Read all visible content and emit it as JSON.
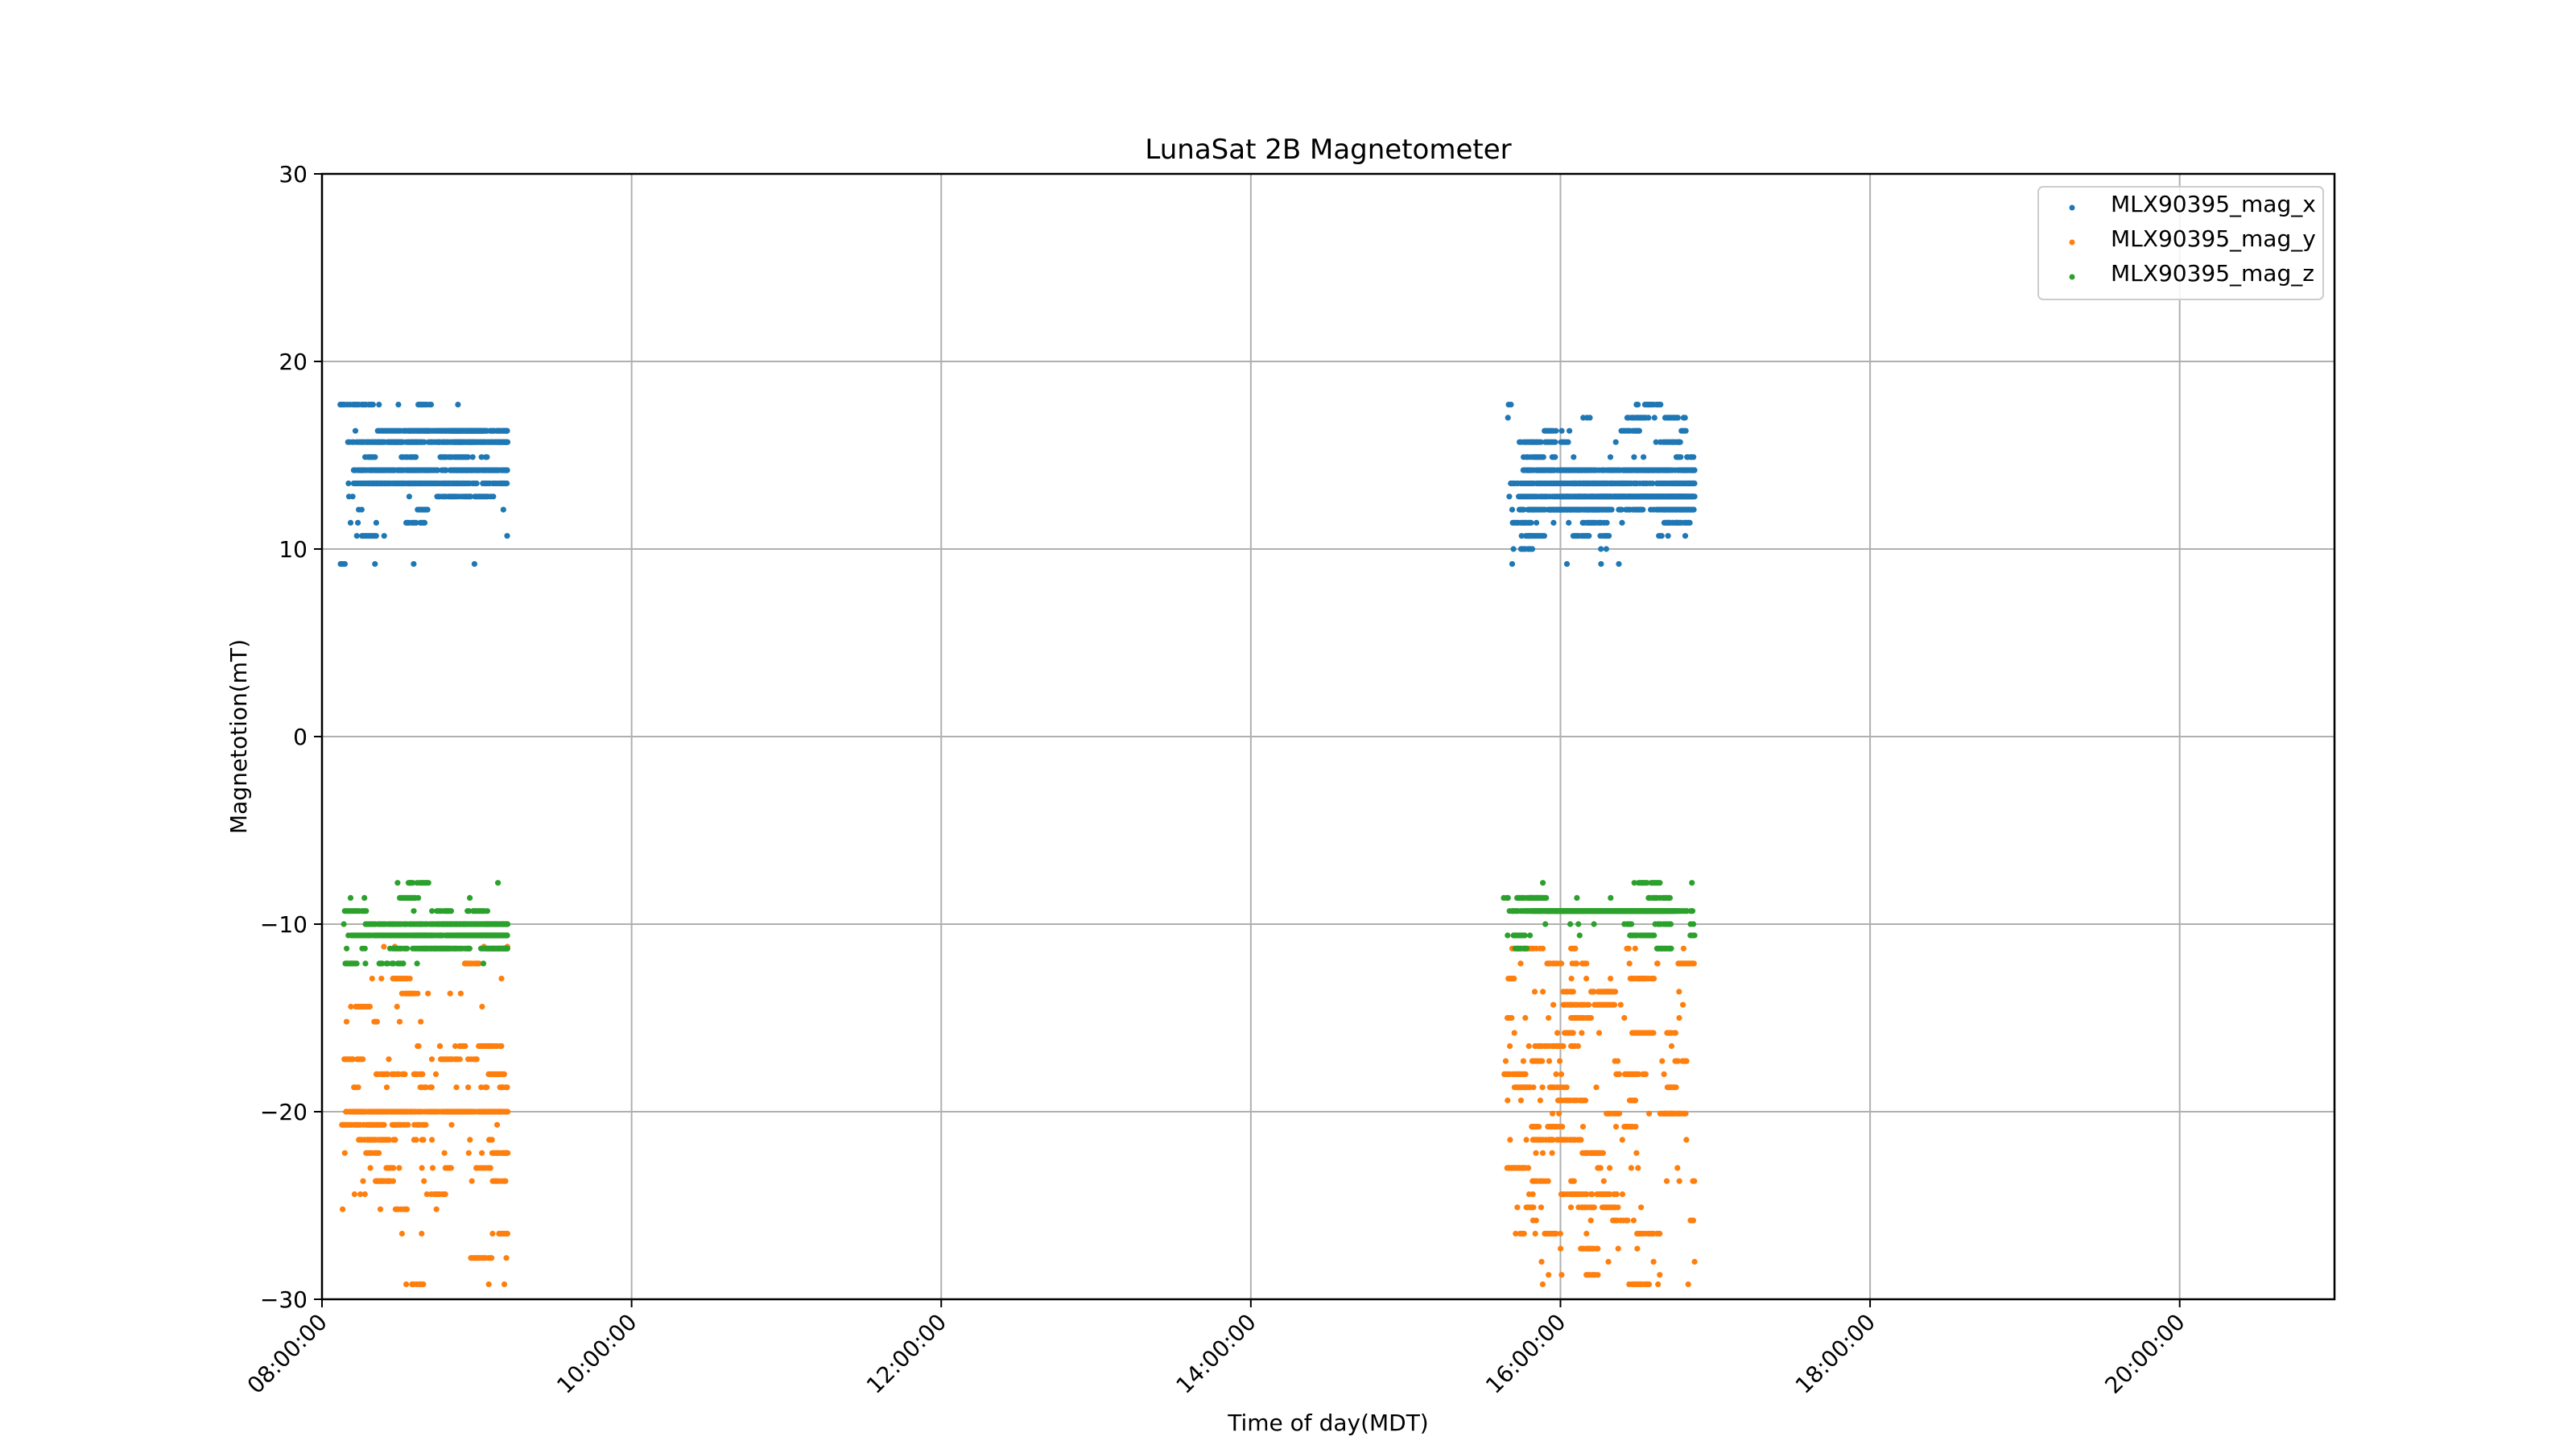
{
  "chart_data": {
    "type": "scatter",
    "title": "LunaSat 2B Magnetometer",
    "xlabel": "Time of day(MDT)",
    "ylabel": "Magnetotion(mT)",
    "xlim": [
      "08:00:00",
      "21:00:00"
    ],
    "ylim": [
      -30,
      30
    ],
    "x_ticks": [
      "08:00:00",
      "10:00:00",
      "12:00:00",
      "14:00:00",
      "16:00:00",
      "18:00:00",
      "20:00:00"
    ],
    "y_ticks": [
      30,
      20,
      10,
      0,
      -10,
      -20,
      -30
    ],
    "y_tick_labels": [
      "30",
      "20",
      "10",
      "0",
      "−10",
      "−20",
      "−30"
    ],
    "grid": true,
    "legend_position": "top-right",
    "series": [
      {
        "name": "MLX90395_mag_x",
        "color": "#1f77b4",
        "segments": [
          {
            "x_start": "08:07:00",
            "x_end": "09:12:00",
            "y_levels": [
              17.7,
              16.3,
              15.7,
              14.9,
              14.2,
              13.5,
              12.8,
              12.1,
              11.4,
              10.7,
              9.2
            ],
            "y_weights": [
              2,
              4,
              5,
              3,
              4,
              5,
              2,
              1,
              1,
              1,
              1
            ]
          },
          {
            "x_start": "15:38:00",
            "x_end": "16:52:00",
            "y_levels": [
              17.7,
              17.0,
              16.3,
              15.7,
              14.9,
              14.2,
              13.5,
              12.8,
              12.1,
              11.4,
              10.7,
              10.0,
              9.2
            ],
            "y_weights": [
              1,
              2,
              2,
              3,
              3,
              4,
              5,
              5,
              4,
              3,
              3,
              1,
              1
            ]
          }
        ]
      },
      {
        "name": "MLX90395_mag_y",
        "color": "#ff7f0e",
        "segments": [
          {
            "x_start": "08:07:00",
            "x_end": "09:12:00",
            "y_levels": [
              -11.2,
              -12.1,
              -12.9,
              -13.7,
              -14.4,
              -15.2,
              -16.5,
              -17.2,
              -18.0,
              -18.7,
              -20.0,
              -20.7,
              -21.5,
              -22.2,
              -23.0,
              -23.7,
              -24.4,
              -25.2,
              -26.5,
              -27.8,
              -29.2
            ],
            "y_weights": [
              1,
              1,
              1,
              1,
              1,
              1,
              2,
              2,
              3,
              3,
              4,
              3,
              3,
              3,
              2,
              2,
              1,
              1,
              1,
              1,
              1
            ]
          },
          {
            "x_start": "15:38:00",
            "x_end": "16:52:00",
            "y_levels": [
              -11.3,
              -12.1,
              -12.9,
              -13.6,
              -14.3,
              -15.0,
              -15.8,
              -16.5,
              -17.3,
              -18.0,
              -18.7,
              -19.4,
              -20.1,
              -20.8,
              -21.5,
              -22.2,
              -23.0,
              -23.7,
              -24.4,
              -25.1,
              -25.8,
              -26.5,
              -27.3,
              -28.0,
              -28.7,
              -29.2
            ],
            "y_weights": [
              2,
              2,
              2,
              2,
              2,
              2,
              2,
              2,
              2,
              2,
              2,
              2,
              2,
              2,
              2,
              2,
              2,
              2,
              2,
              2,
              2,
              2,
              1,
              1,
              1,
              1
            ]
          }
        ]
      },
      {
        "name": "MLX90395_mag_z",
        "color": "#2ca02c",
        "segments": [
          {
            "x_start": "08:07:00",
            "x_end": "09:12:00",
            "y_levels": [
              -7.8,
              -8.6,
              -9.3,
              -10.0,
              -10.6,
              -11.3,
              -12.1
            ],
            "y_weights": [
              1,
              1,
              2,
              5,
              6,
              5,
              2
            ]
          },
          {
            "x_start": "15:38:00",
            "x_end": "16:52:00",
            "y_levels": [
              -7.8,
              -8.6,
              -9.3,
              -10.0,
              -10.6,
              -11.3
            ],
            "y_weights": [
              1,
              3,
              7,
              2,
              2,
              2
            ]
          }
        ]
      }
    ]
  }
}
